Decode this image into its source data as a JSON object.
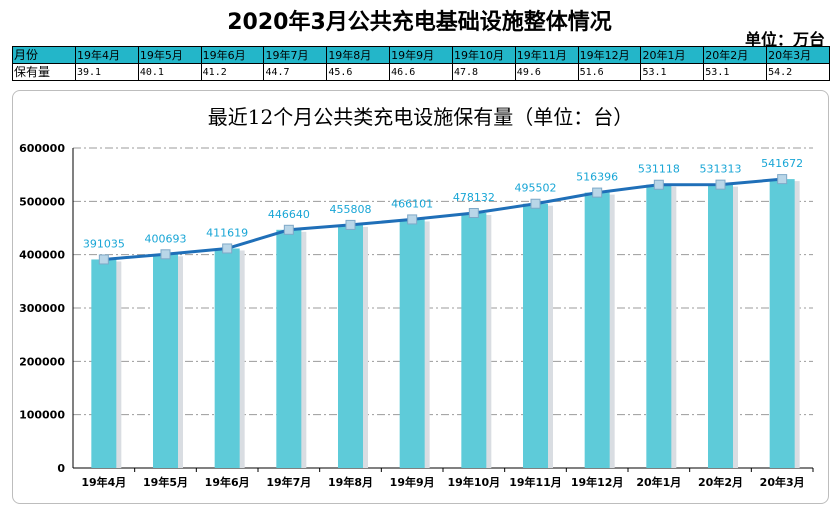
{
  "page": {
    "title": "2020年3月公共充电基础设施整体情况",
    "unit": "单位：万台"
  },
  "summary_table": {
    "header_label": "月份",
    "months": [
      "19年4月",
      "19年5月",
      "19年6月",
      "19年7月",
      "19年8月",
      "19年9月",
      "19年10月",
      "19年11月",
      "19年12月",
      "20年1月",
      "20年2月",
      "20年3月"
    ],
    "value_label": "保有量",
    "values": [
      "39.1",
      "40.1",
      "41.2",
      "44.7",
      "45.6",
      "46.6",
      "47.8",
      "49.6",
      "51.6",
      "53.1",
      "53.1",
      "54.2"
    ],
    "header_color": "#23b6c9"
  },
  "chart_data": {
    "type": "bar",
    "title": "最近12个月公共类充电设施保有量（单位：台）",
    "categories": [
      "19年4月",
      "19年5月",
      "19年6月",
      "19年7月",
      "19年8月",
      "19年9月",
      "19年10月",
      "19年11月",
      "19年12月",
      "20年1月",
      "20年2月",
      "20年3月"
    ],
    "values": [
      391035,
      400693,
      411619,
      446640,
      455808,
      466101,
      478132,
      495502,
      516396,
      531118,
      531313,
      541672
    ],
    "overlay": "line",
    "ylim": [
      0,
      600000
    ],
    "yticks": [
      0,
      100000,
      200000,
      300000,
      400000,
      500000,
      600000
    ],
    "grid": "horizontal-dash-dot",
    "legend": "none",
    "colors": {
      "bar": "#5ecbd9",
      "bar_shadow": "#d9dde2",
      "line": "#1f6fb8",
      "marker": "#b9d6e8",
      "marker_border": "#7fa9c8",
      "data_label": "#19a6d6",
      "grid": "#9b9b9b"
    }
  }
}
